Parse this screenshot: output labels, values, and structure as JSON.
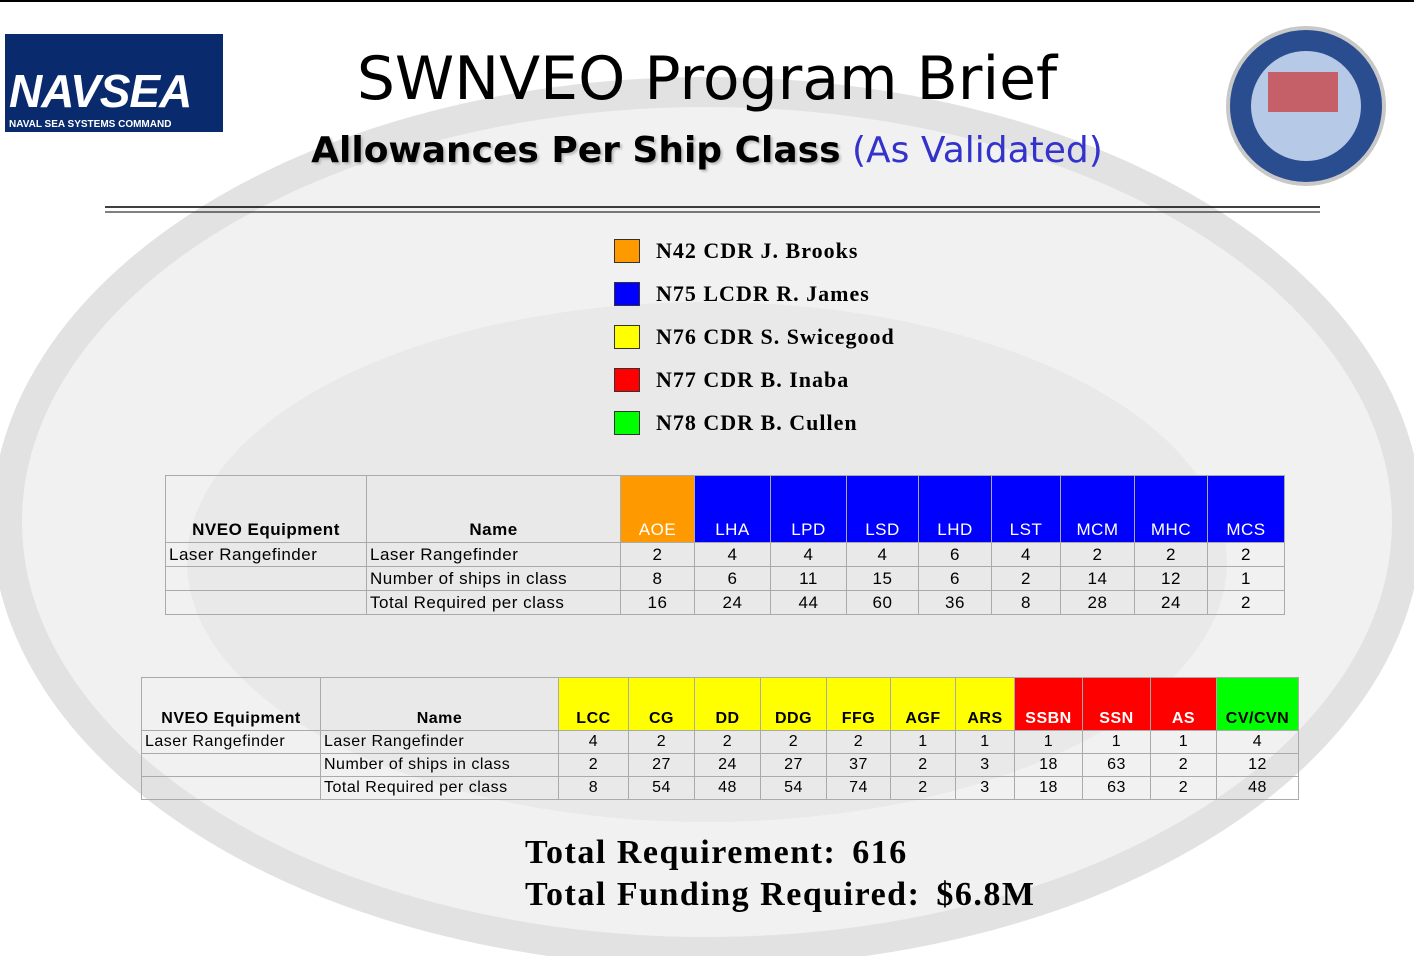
{
  "header": {
    "logo_title": "NAVSEA",
    "logo_caption": "NAVAL SEA SYSTEMS COMMAND",
    "title": "SWNVEO Program Brief",
    "subtitle": "Allowances Per Ship Class",
    "subtitle_note": "(As Validated)"
  },
  "legend": [
    {
      "label": "N42 CDR J. Brooks",
      "color": "#ff9900"
    },
    {
      "label": "N75 LCDR R. James",
      "color": "#0000ff"
    },
    {
      "label": "N76 CDR S. Swicegood",
      "color": "#ffff00"
    },
    {
      "label": "N77 CDR B. Inaba",
      "color": "#ff0000"
    },
    {
      "label": "N78 CDR B. Cullen",
      "color": "#00ff00"
    }
  ],
  "tables": [
    {
      "columns": [
        "NVEO Equipment",
        "Name"
      ],
      "classes": [
        {
          "name": "AOE",
          "color": "#ff9900",
          "text_color": "#ffffff"
        },
        {
          "name": "LHA",
          "color": "#0000ff",
          "text_color": "#ffffff"
        },
        {
          "name": "LPD",
          "color": "#0000ff",
          "text_color": "#ffffff"
        },
        {
          "name": "LSD",
          "color": "#0000ff",
          "text_color": "#ffffff"
        },
        {
          "name": "LHD",
          "color": "#0000ff",
          "text_color": "#ffffff"
        },
        {
          "name": "LST",
          "color": "#0000ff",
          "text_color": "#ffffff"
        },
        {
          "name": "MCM",
          "color": "#0000ff",
          "text_color": "#ffffff"
        },
        {
          "name": "MHC",
          "color": "#0000ff",
          "text_color": "#ffffff"
        },
        {
          "name": "MCS",
          "color": "#0000ff",
          "text_color": "#ffffff"
        }
      ],
      "rows": [
        {
          "equipment": "Laser Rangefinder",
          "name": "Laser Rangefinder",
          "values": [
            2,
            4,
            4,
            4,
            6,
            4,
            2,
            2,
            2
          ]
        },
        {
          "name": "Number of ships in class",
          "values": [
            8,
            6,
            11,
            15,
            6,
            2,
            14,
            12,
            1
          ]
        },
        {
          "name": "Total Required per class",
          "values": [
            16,
            24,
            44,
            60,
            36,
            8,
            28,
            24,
            2
          ]
        }
      ]
    },
    {
      "columns": [
        "NVEO Equipment",
        "Name"
      ],
      "classes": [
        {
          "name": "LCC",
          "color": "#ffff00",
          "text_color": "#000000"
        },
        {
          "name": "CG",
          "color": "#ffff00",
          "text_color": "#000000"
        },
        {
          "name": "DD",
          "color": "#ffff00",
          "text_color": "#000000"
        },
        {
          "name": "DDG",
          "color": "#ffff00",
          "text_color": "#000000"
        },
        {
          "name": "FFG",
          "color": "#ffff00",
          "text_color": "#000000"
        },
        {
          "name": "AGF",
          "color": "#ffff00",
          "text_color": "#000000"
        },
        {
          "name": "ARS",
          "color": "#ffff00",
          "text_color": "#000000"
        },
        {
          "name": "SSBN",
          "color": "#ff0000",
          "text_color": "#ffffff"
        },
        {
          "name": "SSN",
          "color": "#ff0000",
          "text_color": "#ffffff"
        },
        {
          "name": "AS",
          "color": "#ff0000",
          "text_color": "#ffffff"
        },
        {
          "name": "CV/CVN",
          "color": "#00ff00",
          "text_color": "#000000"
        }
      ],
      "rows": [
        {
          "equipment": "Laser Rangefinder",
          "name": "Laser Rangefinder",
          "values": [
            4,
            2,
            2,
            2,
            2,
            1,
            1,
            1,
            1,
            1,
            4
          ]
        },
        {
          "name": "Number of ships in class",
          "values": [
            2,
            27,
            24,
            27,
            37,
            2,
            3,
            18,
            63,
            2,
            12
          ]
        },
        {
          "name": "Total Required per class",
          "values": [
            8,
            54,
            48,
            54,
            74,
            2,
            3,
            18,
            63,
            2,
            48
          ]
        }
      ]
    }
  ],
  "totals": [
    {
      "label": "Total Requirement:",
      "value": "616"
    },
    {
      "label": "Total Funding Required:",
      "value": "$6.8M"
    }
  ]
}
